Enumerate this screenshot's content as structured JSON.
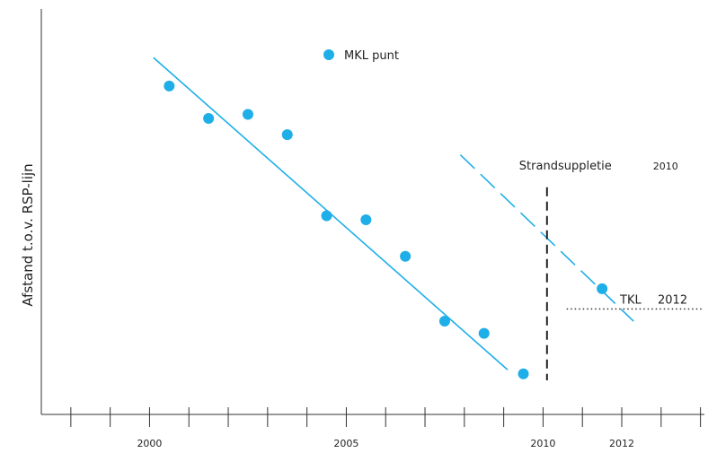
{
  "chart_data": {
    "type": "scatter",
    "title": "",
    "xlabel": "",
    "ylabel": "Afstand  t.o.v.  RSP-lijn",
    "xlim": [
      1997.25,
      2014.1
    ],
    "ylim": [
      0,
      100
    ],
    "x_ticks": [
      1998,
      1999,
      2000,
      2001,
      2002,
      2003,
      2004,
      2005,
      2006,
      2007,
      2008,
      2009,
      2010,
      2011,
      2012,
      2013,
      2014
    ],
    "x_tick_labels": [
      {
        "x": 2000,
        "label": "2000"
      },
      {
        "x": 2005,
        "label": "2005"
      },
      {
        "x": 2010,
        "label": "2010"
      },
      {
        "x": 2012,
        "label": "2012"
      }
    ],
    "legend": {
      "label": "MKL  punt",
      "position": "top-center"
    },
    "color": "#1eaee8",
    "series": [
      {
        "name": "MKL  punt",
        "points": [
          {
            "x": 2000.5,
            "y": 81
          },
          {
            "x": 2001.5,
            "y": 73
          },
          {
            "x": 2002.5,
            "y": 74
          },
          {
            "x": 2003.5,
            "y": 69
          },
          {
            "x": 2004.5,
            "y": 49
          },
          {
            "x": 2005.5,
            "y": 48
          },
          {
            "x": 2006.5,
            "y": 39
          },
          {
            "x": 2007.5,
            "y": 23
          },
          {
            "x": 2008.5,
            "y": 20
          },
          {
            "x": 2009.5,
            "y": 10
          }
        ]
      },
      {
        "name": "",
        "points": [
          {
            "x": 2011.5,
            "y": 31
          }
        ]
      }
    ],
    "trend_lines": [
      {
        "style": "solid",
        "from": {
          "x": 2000.1,
          "y": 88
        },
        "to": {
          "x": 2009.1,
          "y": 11
        }
      },
      {
        "style": "dashed",
        "from": {
          "x": 2007.9,
          "y": 64
        },
        "to": {
          "x": 2012.3,
          "y": 23
        }
      }
    ],
    "annotations": [
      {
        "kind": "vline-dashed",
        "x": 2010.1,
        "y_top": 60,
        "label_main": "Strandsuppletie",
        "label_year": "2010"
      },
      {
        "kind": "hline-dotted",
        "y": 26,
        "x_from": 2010.6,
        "x_to": 2014.1,
        "label_main": "TKL",
        "label_year": "2012"
      }
    ]
  }
}
